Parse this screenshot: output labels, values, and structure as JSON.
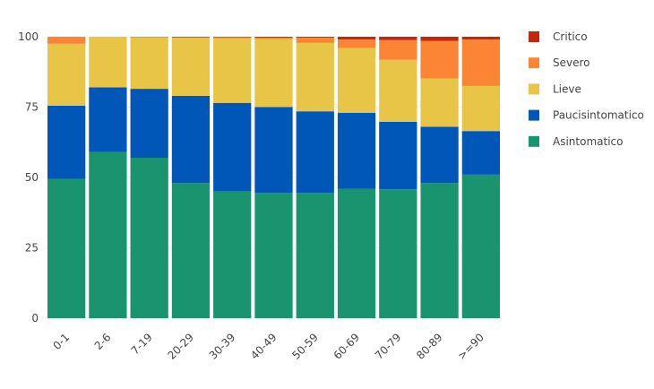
{
  "chart_data": {
    "type": "bar",
    "stacked": true,
    "categories": [
      "0-1",
      "2-6",
      "7-19",
      "20-29",
      "30-39",
      "40-49",
      "50-59",
      "60-69",
      "70-79",
      "80-89",
      ">=90"
    ],
    "series": [
      {
        "name": "Asintomatico",
        "color": "#1a936f",
        "values": [
          49.5,
          59,
          57,
          48,
          45,
          44.5,
          44.5,
          46,
          45.8,
          48,
          51
        ]
      },
      {
        "name": "Paucisintomatico",
        "color": "#0057b7",
        "values": [
          26,
          23,
          24.5,
          31,
          31.5,
          30.5,
          29,
          27,
          24,
          20,
          15.5
        ]
      },
      {
        "name": "Lieve",
        "color": "#e8c547",
        "values": [
          22,
          18,
          18.2,
          20.6,
          23,
          24.2,
          24.3,
          23,
          22,
          17.2,
          16
        ]
      },
      {
        "name": "Severo",
        "color": "#fb8535",
        "values": [
          2.5,
          0,
          0.3,
          0.2,
          0.3,
          0.5,
          1.9,
          3,
          7,
          13.3,
          16.5
        ]
      },
      {
        "name": "Critico",
        "color": "#c0280f",
        "values": [
          0,
          0,
          0,
          0.2,
          0.2,
          0.3,
          0.3,
          1,
          1.2,
          1.5,
          1
        ]
      }
    ],
    "legend_order": [
      "Critico",
      "Severo",
      "Lieve",
      "Paucisintomatico",
      "Asintomatico"
    ],
    "legend_position": "right",
    "yticks": [
      0,
      25,
      50,
      75,
      100
    ],
    "ylim": [
      0,
      100
    ],
    "grid": true,
    "xlabel": "",
    "ylabel": "",
    "title": ""
  }
}
